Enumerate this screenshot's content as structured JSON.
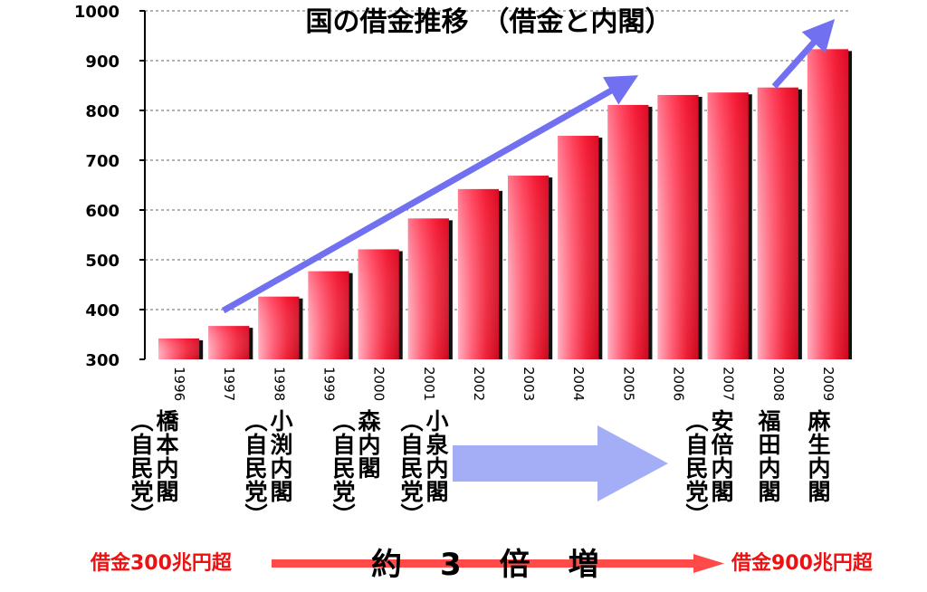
{
  "chart_data": {
    "type": "bar",
    "title": "国の借金推移　（借金と内閣）",
    "categories": [
      "1996",
      "1997",
      "1998",
      "1999",
      "2000",
      "2001",
      "2002",
      "2003",
      "2004",
      "2005",
      "2006",
      "2007",
      "2008",
      "2009"
    ],
    "values": [
      342,
      367,
      426,
      477,
      521,
      583,
      642,
      669,
      749,
      811,
      831,
      836,
      846,
      923
    ],
    "ylim": [
      300,
      1000
    ],
    "yticks": [
      300,
      400,
      500,
      600,
      700,
      800,
      900,
      1000
    ],
    "grid": true,
    "bar_color": "#e8102a",
    "trend_arrow_color": "#7070f0"
  },
  "cabinets": [
    {
      "name": "橋本内閣",
      "party": "（自民党）"
    },
    {
      "name": "小渕内閣",
      "party": "（自民党）"
    },
    {
      "name": "森内閣",
      "party": "（自民党）"
    },
    {
      "name": "小泉内閣",
      "party": "（自民党）"
    },
    {
      "name": "安倍内閣",
      "party": "（自民党）"
    },
    {
      "name": "福田内閣",
      "party": ""
    },
    {
      "name": "麻生内閣",
      "party": ""
    }
  ],
  "footer": {
    "debt_start": "借金300兆円超",
    "increase": [
      "約",
      "3",
      "倍",
      "増"
    ],
    "debt_end": "借金900兆円超"
  }
}
